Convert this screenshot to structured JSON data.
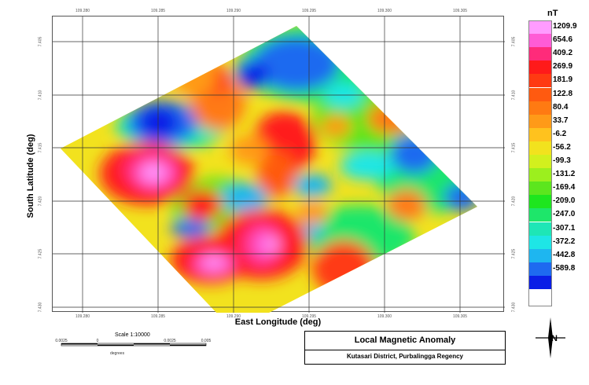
{
  "map": {
    "x_label": "East Longitude (deg)",
    "y_label": "South Latitude (deg)",
    "top_ticks": [
      "109.280",
      "109.285",
      "109.290",
      "109.295",
      "109.300",
      "109.305"
    ],
    "bottom_ticks": [
      "109.280",
      "109.285",
      "109.290",
      "109.295",
      "109.300",
      "109.305"
    ],
    "left_ticks": [
      "7.405",
      "7.410",
      "7.415",
      "7.420",
      "7.425",
      "7.430"
    ],
    "right_ticks": [
      "7.405",
      "7.410",
      "7.415",
      "7.420",
      "7.425",
      "7.430"
    ]
  },
  "legend": {
    "unit": "nT",
    "entries": [
      {
        "label": "1209.9",
        "color": "#ff9cff"
      },
      {
        "label": "654.6",
        "color": "#ff5cd6"
      },
      {
        "label": "409.2",
        "color": "#ff2b7a"
      },
      {
        "label": "269.9",
        "color": "#ff1a1a"
      },
      {
        "label": "181.9",
        "color": "#ff3a12"
      },
      {
        "label": "122.8",
        "color": "#ff5a10"
      },
      {
        "label": "80.4",
        "color": "#ff7a12"
      },
      {
        "label": "33.7",
        "color": "#ff9a18"
      },
      {
        "label": "-6.2",
        "color": "#ffc21e"
      },
      {
        "label": "-56.2",
        "color": "#f2e21e"
      },
      {
        "label": "-99.3",
        "color": "#d2f01e"
      },
      {
        "label": "-131.2",
        "color": "#9cef1e"
      },
      {
        "label": "-169.4",
        "color": "#5ce61e"
      },
      {
        "label": "-209.0",
        "color": "#1ee61e"
      },
      {
        "label": "-247.0",
        "color": "#1ee66a"
      },
      {
        "label": "-307.1",
        "color": "#1ee6b6"
      },
      {
        "label": "-372.2",
        "color": "#1ee6e6"
      },
      {
        "label": "-442.8",
        "color": "#1eb6f0"
      },
      {
        "label": "-589.8",
        "color": "#1e6af0"
      },
      {
        "label": "",
        "color": "#0a1ee6"
      }
    ]
  },
  "scale": {
    "text": "Scale 1:10000",
    "unit": "degrees",
    "ticks": [
      "0.0025",
      "0",
      "0.0025",
      "0.005"
    ]
  },
  "title": {
    "main": "Local Magnetic Anomaly",
    "sub": "Kutasari District, Purbalingga Regency"
  },
  "north": {
    "label": "N"
  }
}
